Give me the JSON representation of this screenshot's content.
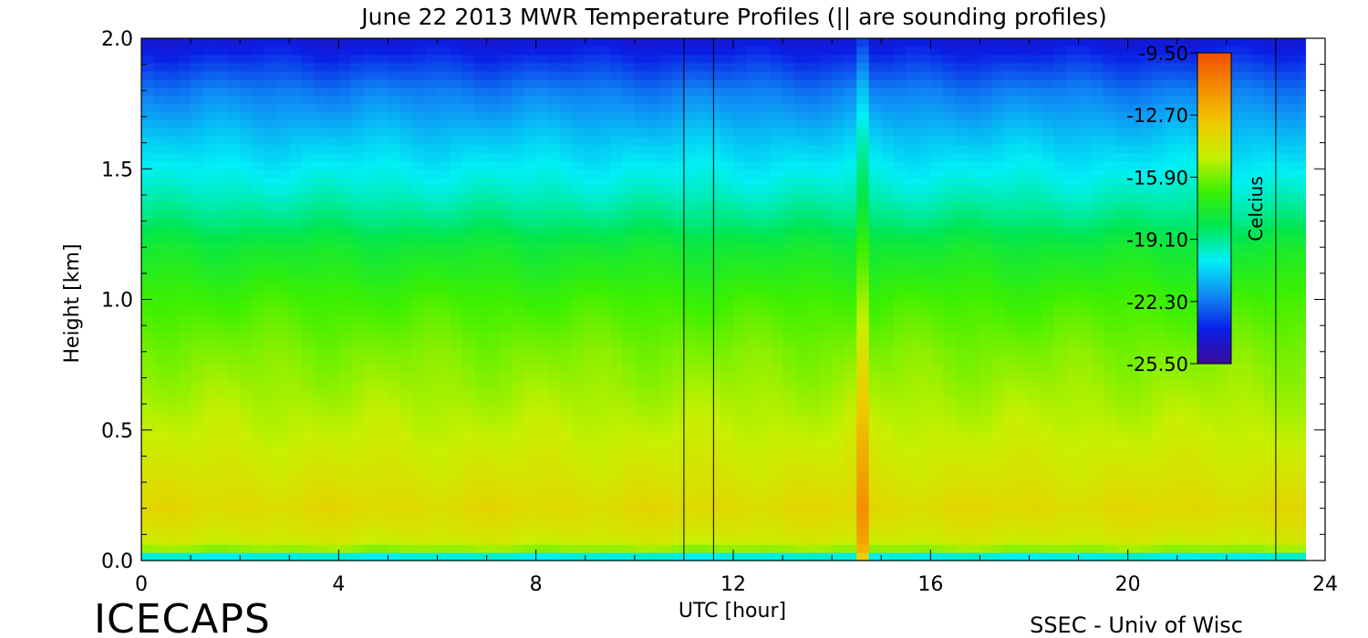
{
  "chart_data": {
    "type": "heatmap",
    "title": "June 22 2013 MWR Temperature Profiles (|| are sounding profiles)",
    "xlabel": "UTC [hour]",
    "ylabel": "Height [km]",
    "xlim": [
      0,
      24
    ],
    "ylim": [
      0.0,
      2.0
    ],
    "x_ticks": [
      "0",
      "4",
      "8",
      "12",
      "16",
      "20",
      "24"
    ],
    "y_ticks": [
      "0.0",
      "0.5",
      "1.0",
      "1.5",
      "2.0"
    ],
    "colorbar": {
      "label": "Celcius",
      "min": -25.5,
      "max": -9.5,
      "ticks": [
        "-9.50",
        "-12.70",
        "-15.90",
        "-19.10",
        "-22.30",
        "-25.50"
      ],
      "colormap": [
        "#3a0a9a",
        "#0a1ee6",
        "#0f8cf5",
        "#00f0f5",
        "#00e650",
        "#3cf000",
        "#c8f000",
        "#f0c800",
        "#f58c00",
        "#f05000"
      ]
    },
    "sounding_times_utc": [
      11.0,
      11.6,
      23.0
    ],
    "data_gap_utc": [
      23.6,
      24.0
    ],
    "temperature_profile": {
      "height_km": [
        0.0,
        0.02,
        0.05,
        0.1,
        0.2,
        0.35,
        0.5,
        0.8,
        1.0,
        1.2,
        1.3,
        1.4,
        1.6,
        1.8,
        1.9,
        2.0
      ],
      "temp_c": [
        -21.5,
        -19.5,
        -15.0,
        -14.4,
        -13.8,
        -14.4,
        -14.9,
        -15.8,
        -16.6,
        -17.8,
        -18.8,
        -19.6,
        -20.8,
        -22.2,
        -23.2,
        -24.2
      ]
    },
    "warm_event": {
      "time_utc": 14.6,
      "surface_temp_c": -10.5,
      "note_visible": ""
    }
  },
  "branding": {
    "left": "ICECAPS",
    "right": "SSEC - Univ of Wisc"
  }
}
